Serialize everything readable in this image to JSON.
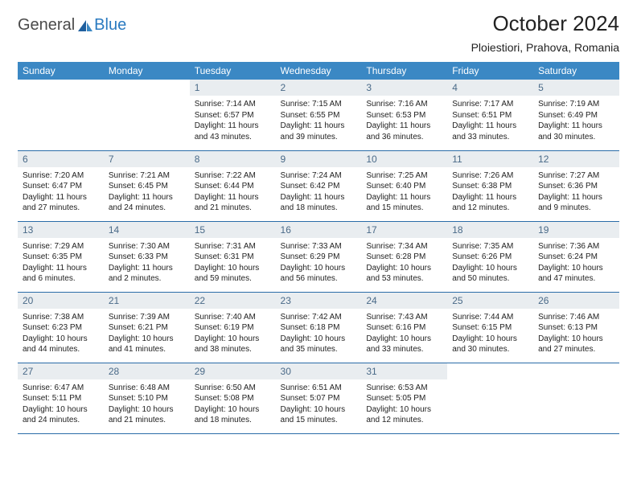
{
  "logo": {
    "textA": "General",
    "textB": "Blue"
  },
  "title": "October 2024",
  "location": "Ploiestiori, Prahova, Romania",
  "colors": {
    "headerBg": "#3b88c4",
    "headerText": "#ffffff",
    "dayNumBg": "#e9edf0",
    "dayNumText": "#4a6a88",
    "bodyText": "#222222",
    "rowBorder": "#2a6ca8",
    "logoBlue": "#2a7ac0",
    "logoGray": "#4a4a4a"
  },
  "daysOfWeek": [
    "Sunday",
    "Monday",
    "Tuesday",
    "Wednesday",
    "Thursday",
    "Friday",
    "Saturday"
  ],
  "weeks": [
    [
      null,
      null,
      {
        "n": "1",
        "sr": "7:14 AM",
        "ss": "6:57 PM",
        "dl": "11 hours and 43 minutes."
      },
      {
        "n": "2",
        "sr": "7:15 AM",
        "ss": "6:55 PM",
        "dl": "11 hours and 39 minutes."
      },
      {
        "n": "3",
        "sr": "7:16 AM",
        "ss": "6:53 PM",
        "dl": "11 hours and 36 minutes."
      },
      {
        "n": "4",
        "sr": "7:17 AM",
        "ss": "6:51 PM",
        "dl": "11 hours and 33 minutes."
      },
      {
        "n": "5",
        "sr": "7:19 AM",
        "ss": "6:49 PM",
        "dl": "11 hours and 30 minutes."
      }
    ],
    [
      {
        "n": "6",
        "sr": "7:20 AM",
        "ss": "6:47 PM",
        "dl": "11 hours and 27 minutes."
      },
      {
        "n": "7",
        "sr": "7:21 AM",
        "ss": "6:45 PM",
        "dl": "11 hours and 24 minutes."
      },
      {
        "n": "8",
        "sr": "7:22 AM",
        "ss": "6:44 PM",
        "dl": "11 hours and 21 minutes."
      },
      {
        "n": "9",
        "sr": "7:24 AM",
        "ss": "6:42 PM",
        "dl": "11 hours and 18 minutes."
      },
      {
        "n": "10",
        "sr": "7:25 AM",
        "ss": "6:40 PM",
        "dl": "11 hours and 15 minutes."
      },
      {
        "n": "11",
        "sr": "7:26 AM",
        "ss": "6:38 PM",
        "dl": "11 hours and 12 minutes."
      },
      {
        "n": "12",
        "sr": "7:27 AM",
        "ss": "6:36 PM",
        "dl": "11 hours and 9 minutes."
      }
    ],
    [
      {
        "n": "13",
        "sr": "7:29 AM",
        "ss": "6:35 PM",
        "dl": "11 hours and 6 minutes."
      },
      {
        "n": "14",
        "sr": "7:30 AM",
        "ss": "6:33 PM",
        "dl": "11 hours and 2 minutes."
      },
      {
        "n": "15",
        "sr": "7:31 AM",
        "ss": "6:31 PM",
        "dl": "10 hours and 59 minutes."
      },
      {
        "n": "16",
        "sr": "7:33 AM",
        "ss": "6:29 PM",
        "dl": "10 hours and 56 minutes."
      },
      {
        "n": "17",
        "sr": "7:34 AM",
        "ss": "6:28 PM",
        "dl": "10 hours and 53 minutes."
      },
      {
        "n": "18",
        "sr": "7:35 AM",
        "ss": "6:26 PM",
        "dl": "10 hours and 50 minutes."
      },
      {
        "n": "19",
        "sr": "7:36 AM",
        "ss": "6:24 PM",
        "dl": "10 hours and 47 minutes."
      }
    ],
    [
      {
        "n": "20",
        "sr": "7:38 AM",
        "ss": "6:23 PM",
        "dl": "10 hours and 44 minutes."
      },
      {
        "n": "21",
        "sr": "7:39 AM",
        "ss": "6:21 PM",
        "dl": "10 hours and 41 minutes."
      },
      {
        "n": "22",
        "sr": "7:40 AM",
        "ss": "6:19 PM",
        "dl": "10 hours and 38 minutes."
      },
      {
        "n": "23",
        "sr": "7:42 AM",
        "ss": "6:18 PM",
        "dl": "10 hours and 35 minutes."
      },
      {
        "n": "24",
        "sr": "7:43 AM",
        "ss": "6:16 PM",
        "dl": "10 hours and 33 minutes."
      },
      {
        "n": "25",
        "sr": "7:44 AM",
        "ss": "6:15 PM",
        "dl": "10 hours and 30 minutes."
      },
      {
        "n": "26",
        "sr": "7:46 AM",
        "ss": "6:13 PM",
        "dl": "10 hours and 27 minutes."
      }
    ],
    [
      {
        "n": "27",
        "sr": "6:47 AM",
        "ss": "5:11 PM",
        "dl": "10 hours and 24 minutes."
      },
      {
        "n": "28",
        "sr": "6:48 AM",
        "ss": "5:10 PM",
        "dl": "10 hours and 21 minutes."
      },
      {
        "n": "29",
        "sr": "6:50 AM",
        "ss": "5:08 PM",
        "dl": "10 hours and 18 minutes."
      },
      {
        "n": "30",
        "sr": "6:51 AM",
        "ss": "5:07 PM",
        "dl": "10 hours and 15 minutes."
      },
      {
        "n": "31",
        "sr": "6:53 AM",
        "ss": "5:05 PM",
        "dl": "10 hours and 12 minutes."
      },
      null,
      null
    ]
  ],
  "labels": {
    "sunrise": "Sunrise: ",
    "sunset": "Sunset: ",
    "daylight": "Daylight: "
  }
}
